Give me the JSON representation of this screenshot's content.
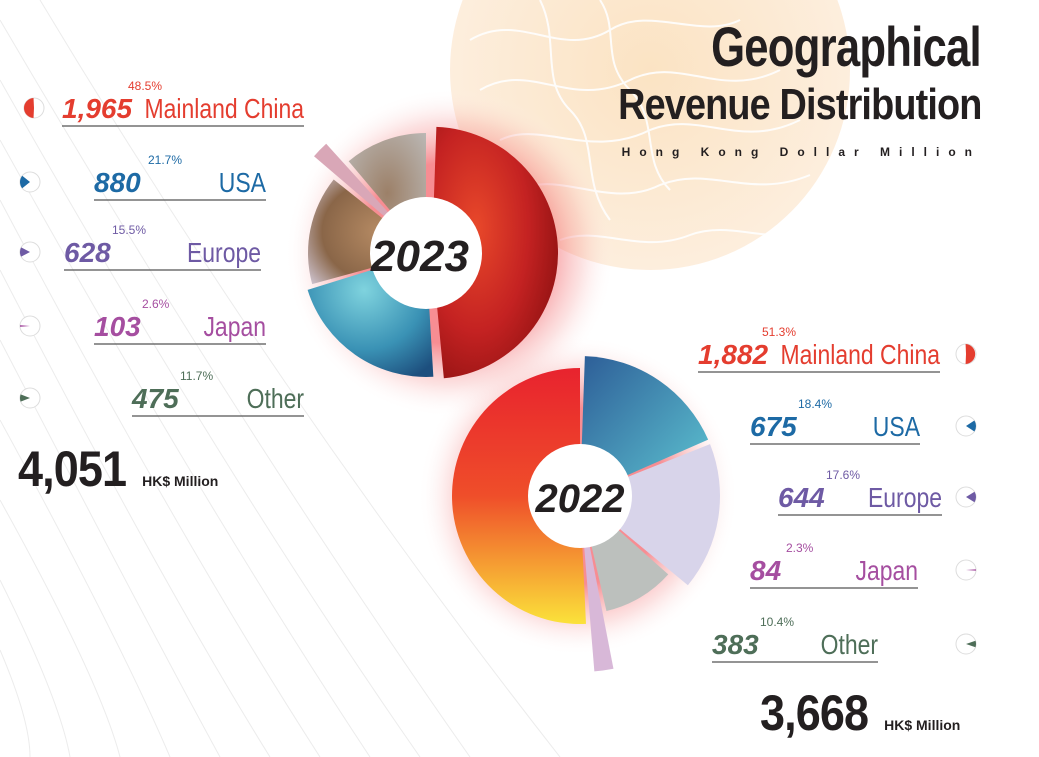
{
  "title_line1": "Geographical",
  "title_line2": "Revenue Distribution",
  "subtitle": "Hong Kong Dollar Million",
  "colors": {
    "mainland_china": "#e43d2f",
    "usa": "#1d6aa5",
    "europe": "#6e5aa4",
    "japan": "#a54ea0",
    "other": "#4e6e58",
    "text_dark": "#231f20"
  },
  "chart_data": [
    {
      "type": "pie",
      "year_label": "2023",
      "total": "4,051",
      "unit": "HK$ Million",
      "slices": [
        {
          "region": "Mainland China",
          "value": 1965,
          "value_label": "1,965",
          "percent": "48.5%",
          "pct": 48.5
        },
        {
          "region": "USA",
          "value": 880,
          "value_label": "880",
          "percent": "21.7%",
          "pct": 21.7
        },
        {
          "region": "Europe",
          "value": 628,
          "value_label": "628",
          "percent": "15.5%",
          "pct": 15.5
        },
        {
          "region": "Japan",
          "value": 103,
          "value_label": "103",
          "percent": "2.6%",
          "pct": 2.6
        },
        {
          "region": "Other",
          "value": 475,
          "value_label": "475",
          "percent": "11.7%",
          "pct": 11.7
        }
      ]
    },
    {
      "type": "pie",
      "year_label": "2022",
      "total": "3,668",
      "unit": "HK$ Million",
      "slices": [
        {
          "region": "Mainland China",
          "value": 1882,
          "value_label": "1,882",
          "percent": "51.3%",
          "pct": 51.3
        },
        {
          "region": "USA",
          "value": 675,
          "value_label": "675",
          "percent": "18.4%",
          "pct": 18.4
        },
        {
          "region": "Europe",
          "value": 644,
          "value_label": "644",
          "percent": "17.6%",
          "pct": 17.6
        },
        {
          "region": "Japan",
          "value": 84,
          "value_label": "84",
          "percent": "2.3%",
          "pct": 2.3
        },
        {
          "region": "Other",
          "value": 383,
          "value_label": "383",
          "percent": "10.4%",
          "pct": 10.4
        }
      ]
    }
  ]
}
